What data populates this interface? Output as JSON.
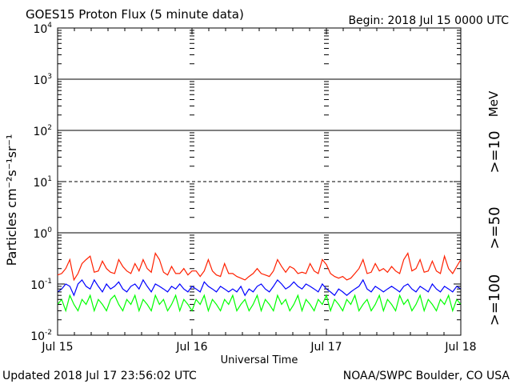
{
  "header": {
    "title": "GOES15 Proton Flux (5 minute data)",
    "begin": "Begin: 2018 Jul 15 0000 UTC"
  },
  "footer": {
    "updated": "Updated 2018 Jul 17 23:56:02 UTC",
    "credit": "NOAA/SWPC Boulder, CO USA"
  },
  "chart_data": {
    "type": "line",
    "title": "GOES15 Proton Flux (5 minute data)",
    "xlabel": "Universal Time",
    "ylabel": "Particles cm⁻²s⁻¹sr⁻¹",
    "y_scale": "log",
    "ylim": [
      0.01,
      10000
    ],
    "xlim": [
      "2018-07-15",
      "2018-07-18"
    ],
    "x_ticks": [
      "Jul 15",
      "Jul 16",
      "Jul 17",
      "Jul 18"
    ],
    "y_ticks": [
      {
        "base": "10",
        "exp": "-2",
        "value": 0.01
      },
      {
        "base": "10",
        "exp": "-1",
        "value": 0.1
      },
      {
        "base": "10",
        "exp": "0",
        "value": 1
      },
      {
        "base": "10",
        "exp": "1",
        "value": 10
      },
      {
        "base": "10",
        "exp": "2",
        "value": 100
      },
      {
        "base": "10",
        "exp": "3",
        "value": 1000
      },
      {
        "base": "10",
        "exp": "4",
        "value": 10000
      }
    ],
    "thresholds": [
      {
        "value": 1000,
        "style": "solid"
      },
      {
        "value": 100,
        "style": "solid"
      },
      {
        "value": 10,
        "style": "dashed"
      },
      {
        "value": 1,
        "style": "solid"
      }
    ],
    "series": [
      {
        "name": ">=10",
        "color": "#ff2000",
        "values": [
          0.15,
          0.16,
          0.2,
          0.3,
          0.12,
          0.16,
          0.25,
          0.3,
          0.35,
          0.17,
          0.18,
          0.28,
          0.2,
          0.17,
          0.16,
          0.3,
          0.22,
          0.18,
          0.16,
          0.25,
          0.18,
          0.3,
          0.2,
          0.17,
          0.4,
          0.3,
          0.17,
          0.15,
          0.22,
          0.16,
          0.16,
          0.2,
          0.15,
          0.18,
          0.18,
          0.14,
          0.18,
          0.3,
          0.18,
          0.15,
          0.14,
          0.25,
          0.16,
          0.16,
          0.14,
          0.13,
          0.12,
          0.14,
          0.16,
          0.2,
          0.16,
          0.15,
          0.14,
          0.18,
          0.3,
          0.22,
          0.17,
          0.22,
          0.2,
          0.16,
          0.17,
          0.16,
          0.25,
          0.18,
          0.16,
          0.3,
          0.24,
          0.16,
          0.14,
          0.13,
          0.14,
          0.12,
          0.13,
          0.16,
          0.2,
          0.3,
          0.16,
          0.17,
          0.25,
          0.18,
          0.2,
          0.17,
          0.22,
          0.18,
          0.16,
          0.3,
          0.4,
          0.18,
          0.2,
          0.3,
          0.17,
          0.18,
          0.28,
          0.18,
          0.16,
          0.35,
          0.2,
          0.16,
          0.22,
          0.3
        ]
      },
      {
        "name": ">=50",
        "color": "#0000ff",
        "values": [
          0.07,
          0.08,
          0.1,
          0.09,
          0.06,
          0.1,
          0.12,
          0.09,
          0.08,
          0.12,
          0.09,
          0.07,
          0.1,
          0.08,
          0.09,
          0.11,
          0.08,
          0.07,
          0.09,
          0.1,
          0.08,
          0.12,
          0.09,
          0.07,
          0.1,
          0.09,
          0.08,
          0.07,
          0.09,
          0.08,
          0.1,
          0.08,
          0.07,
          0.09,
          0.08,
          0.07,
          0.11,
          0.09,
          0.08,
          0.07,
          0.09,
          0.08,
          0.07,
          0.08,
          0.07,
          0.09,
          0.06,
          0.08,
          0.07,
          0.09,
          0.1,
          0.08,
          0.07,
          0.09,
          0.12,
          0.1,
          0.08,
          0.09,
          0.11,
          0.09,
          0.08,
          0.1,
          0.09,
          0.08,
          0.07,
          0.1,
          0.08,
          0.07,
          0.06,
          0.08,
          0.07,
          0.06,
          0.07,
          0.08,
          0.09,
          0.12,
          0.08,
          0.07,
          0.09,
          0.08,
          0.07,
          0.08,
          0.09,
          0.08,
          0.07,
          0.09,
          0.1,
          0.08,
          0.07,
          0.09,
          0.08,
          0.07,
          0.1,
          0.08,
          0.07,
          0.09,
          0.08,
          0.07,
          0.09,
          0.08
        ]
      },
      {
        "name": ">=100",
        "color": "#00ff00",
        "values": [
          0.04,
          0.05,
          0.03,
          0.06,
          0.04,
          0.03,
          0.05,
          0.04,
          0.06,
          0.03,
          0.05,
          0.04,
          0.03,
          0.05,
          0.06,
          0.04,
          0.03,
          0.05,
          0.04,
          0.06,
          0.03,
          0.05,
          0.04,
          0.03,
          0.06,
          0.04,
          0.05,
          0.03,
          0.04,
          0.06,
          0.03,
          0.05,
          0.04,
          0.03,
          0.05,
          0.04,
          0.06,
          0.03,
          0.05,
          0.04,
          0.03,
          0.05,
          0.04,
          0.06,
          0.03,
          0.04,
          0.05,
          0.03,
          0.04,
          0.06,
          0.03,
          0.05,
          0.04,
          0.03,
          0.06,
          0.04,
          0.05,
          0.03,
          0.04,
          0.06,
          0.03,
          0.05,
          0.04,
          0.03,
          0.05,
          0.04,
          0.06,
          0.03,
          0.05,
          0.04,
          0.03,
          0.05,
          0.04,
          0.06,
          0.03,
          0.04,
          0.05,
          0.03,
          0.04,
          0.06,
          0.03,
          0.05,
          0.04,
          0.03,
          0.06,
          0.04,
          0.05,
          0.03,
          0.04,
          0.06,
          0.03,
          0.05,
          0.04,
          0.03,
          0.05,
          0.04,
          0.06,
          0.03,
          0.05,
          0.04
        ]
      }
    ],
    "legend": {
      "placement": "right",
      "unit": "MeV"
    }
  }
}
